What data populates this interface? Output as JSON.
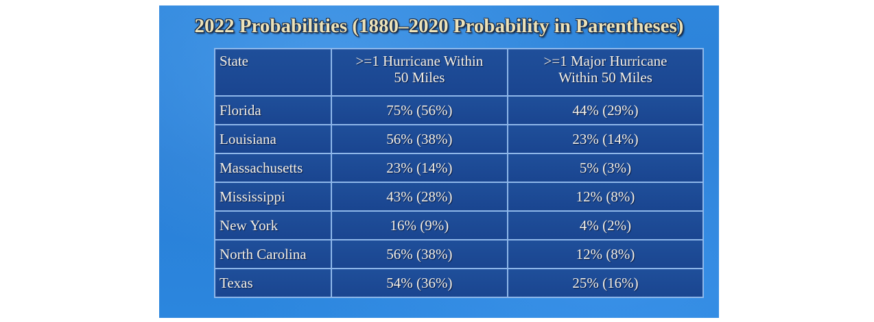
{
  "title": "2022 Probabilities (1880–2020 Probability in Parentheses)",
  "table": {
    "headers": {
      "state": "State",
      "hurricane_line1": ">=1 Hurricane Within",
      "hurricane_line2": "50 Miles",
      "major_line1": ">=1 Major Hurricane",
      "major_line2": "Within 50 Miles"
    },
    "rows": [
      {
        "state": "Florida",
        "hurricane": "75% (56%)",
        "major": "44% (29%)"
      },
      {
        "state": "Louisiana",
        "hurricane": "56% (38%)",
        "major": "23% (14%)"
      },
      {
        "state": "Massachusetts",
        "hurricane": "23% (14%)",
        "major": "5% (3%)"
      },
      {
        "state": "Mississippi",
        "hurricane": "43% (28%)",
        "major": "12% (8%)"
      },
      {
        "state": "New York",
        "hurricane": "16% (9%)",
        "major": "4% (2%)"
      },
      {
        "state": "North Carolina",
        "hurricane": "56% (38%)",
        "major": "12% (8%)"
      },
      {
        "state": "Texas",
        "hurricane": "54% (36%)",
        "major": "25% (16%)"
      }
    ]
  },
  "colors": {
    "background": "#2b82d8",
    "cell": "#1c4894",
    "border": "#8fb8ea",
    "title_text": "#ece2b9"
  }
}
